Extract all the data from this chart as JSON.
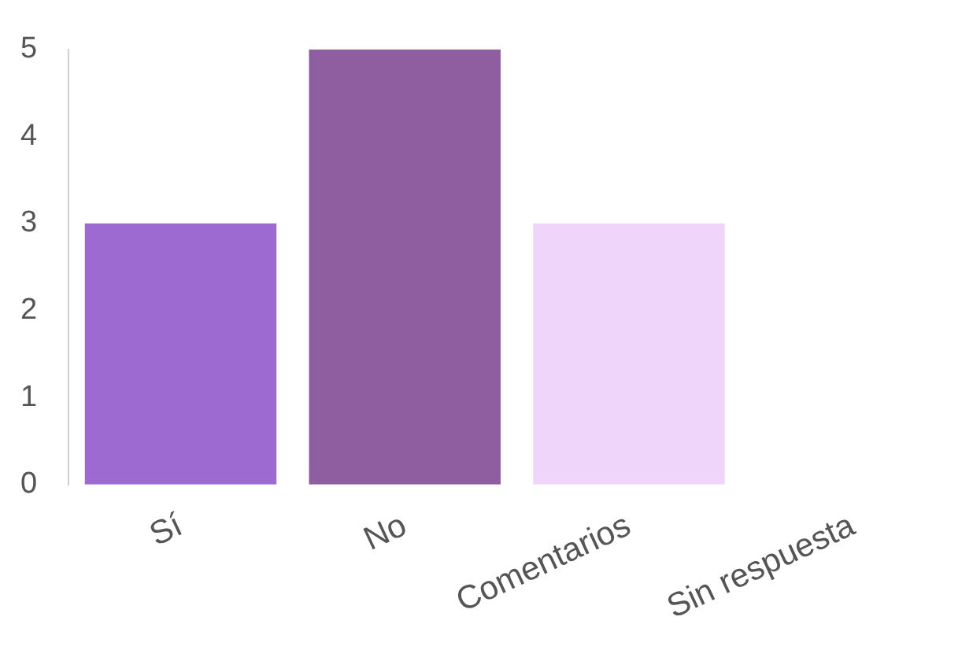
{
  "chart_data": {
    "type": "bar",
    "categories": [
      "Sí",
      "No",
      "Comentarios",
      "Sin respuesta"
    ],
    "values": [
      3,
      5,
      3,
      0
    ],
    "colors": [
      "#9d6ad2",
      "#8f5ea0",
      "#efd5fa",
      "#a466f3"
    ],
    "ylim": [
      0,
      5
    ],
    "yticks": [
      0,
      1,
      2,
      3,
      4,
      5
    ]
  }
}
